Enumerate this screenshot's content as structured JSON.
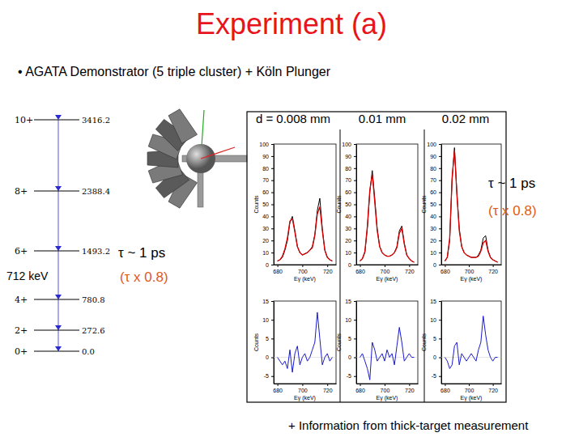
{
  "title": "Experiment (a)",
  "bullet": "• AGATA Demonstrator (5 triple cluster) + Köln Plunger",
  "level_scheme": {
    "levels": [
      {
        "spin": "10+",
        "energy": "3416.2"
      },
      {
        "spin": "8+",
        "energy": "2388.4"
      },
      {
        "spin": "6+",
        "energy": "1493.2"
      },
      {
        "spin": "4+",
        "energy": "780.8"
      },
      {
        "spin": "2+",
        "energy": "272.6"
      },
      {
        "spin": "0+",
        "energy": "0.0"
      }
    ],
    "transition_label": "712 keV"
  },
  "lifetime_labels": {
    "left": [
      "τ ~ 1 ps",
      "(τ x 0.8)"
    ],
    "right": [
      "τ ~ 1 ps",
      "(τ x 0.8)"
    ]
  },
  "footer": "+ Information from thick-target measurement",
  "chart_data": [
    {
      "type": "line",
      "title": "d = 0.008 mm",
      "x_label": "Eγ (keV)",
      "y_label": "Counts",
      "x": [
        680,
        682,
        684,
        686,
        688,
        690,
        692,
        694,
        696,
        698,
        700,
        702,
        704,
        706,
        708,
        710,
        712,
        714,
        716,
        718,
        720,
        722,
        724
      ],
      "series": [
        {
          "color": "#000000",
          "values": [
            3,
            4,
            6,
            12,
            20,
            35,
            40,
            28,
            15,
            10,
            8,
            9,
            10,
            12,
            15,
            25,
            45,
            55,
            30,
            12,
            6,
            4,
            3
          ]
        },
        {
          "color": "#dd0000",
          "values": [
            3,
            4,
            7,
            13,
            22,
            36,
            38,
            27,
            15,
            10,
            8,
            9,
            10,
            12,
            14,
            24,
            42,
            48,
            28,
            12,
            6,
            4,
            3
          ]
        }
      ],
      "xlim": [
        677,
        727
      ],
      "xticks": [
        680,
        700,
        720
      ],
      "ylim": [
        0,
        100
      ],
      "yticks": [
        0,
        10,
        20,
        30,
        40,
        50,
        60,
        70,
        80,
        90,
        100
      ]
    },
    {
      "type": "line",
      "title": "0.01 mm",
      "x_label": "Eγ (keV)",
      "y_label": "Counts",
      "x": [
        680,
        682,
        684,
        686,
        688,
        690,
        692,
        694,
        696,
        698,
        700,
        702,
        704,
        706,
        708,
        710,
        712,
        714,
        716,
        718,
        720,
        722,
        724
      ],
      "series": [
        {
          "color": "#000000",
          "values": [
            3,
            5,
            10,
            30,
            60,
            78,
            55,
            30,
            15,
            10,
            8,
            7,
            7,
            8,
            10,
            15,
            28,
            32,
            18,
            8,
            5,
            3,
            2
          ]
        },
        {
          "color": "#dd0000",
          "values": [
            3,
            5,
            11,
            32,
            62,
            75,
            52,
            28,
            15,
            10,
            8,
            7,
            7,
            8,
            10,
            14,
            26,
            30,
            17,
            8,
            5,
            3,
            2
          ]
        }
      ],
      "xlim": [
        677,
        727
      ],
      "xticks": [
        680,
        700,
        720
      ],
      "ylim": [
        0,
        100
      ],
      "yticks": [
        0,
        10,
        20,
        30,
        40,
        50,
        60,
        70,
        80,
        90,
        100
      ]
    },
    {
      "type": "line",
      "title": "0.02 mm",
      "x_label": "Eγ (keV)",
      "y_label": "Counts",
      "x": [
        680,
        682,
        684,
        686,
        688,
        690,
        692,
        694,
        696,
        698,
        700,
        702,
        704,
        706,
        708,
        710,
        712,
        714,
        716,
        718,
        720,
        722,
        724
      ],
      "series": [
        {
          "color": "#000000",
          "values": [
            3,
            6,
            20,
            70,
            97,
            60,
            30,
            15,
            10,
            8,
            7,
            6,
            6,
            6,
            8,
            12,
            22,
            24,
            12,
            6,
            4,
            3,
            2
          ]
        },
        {
          "color": "#dd0000",
          "values": [
            3,
            6,
            22,
            72,
            95,
            58,
            28,
            15,
            10,
            8,
            7,
            6,
            6,
            6,
            7,
            11,
            18,
            20,
            11,
            6,
            4,
            3,
            2
          ]
        }
      ],
      "xlim": [
        677,
        727
      ],
      "xticks": [
        680,
        700,
        720
      ],
      "ylim": [
        0,
        100
      ],
      "yticks": [
        0,
        10,
        20,
        30,
        40,
        50,
        60,
        70,
        80,
        90,
        100
      ]
    },
    {
      "type": "line",
      "x_label": "Eγ (keV)",
      "y_label": "Counts",
      "x": [
        680,
        682,
        684,
        686,
        688,
        690,
        692,
        694,
        696,
        698,
        700,
        702,
        704,
        706,
        708,
        710,
        712,
        714,
        716,
        718,
        720,
        722,
        724
      ],
      "series": [
        {
          "color": "#1a1acc",
          "values": [
            0,
            -1,
            -2,
            -1,
            -3,
            2,
            -4,
            1,
            3,
            -2,
            0,
            1,
            -1,
            0,
            2,
            4,
            12,
            5,
            -2,
            0,
            1,
            -1,
            0
          ]
        }
      ],
      "xlim": [
        677,
        727
      ],
      "xticks": [
        680,
        700,
        720
      ],
      "ylim": [
        -7,
        15
      ],
      "yticks": [
        -5,
        0,
        5,
        10,
        15
      ]
    },
    {
      "type": "line",
      "x_label": "Eγ (keV)",
      "y_label": "Counts",
      "x": [
        680,
        682,
        684,
        686,
        688,
        690,
        692,
        694,
        696,
        698,
        700,
        702,
        704,
        706,
        708,
        710,
        712,
        714,
        716,
        718,
        720,
        722,
        724
      ],
      "series": [
        {
          "color": "#1a1acc",
          "values": [
            0,
            1,
            -1,
            -3,
            -6,
            4,
            2,
            -1,
            0,
            1,
            -1,
            2,
            0,
            1,
            -2,
            3,
            8,
            4,
            -1,
            0,
            1,
            0,
            0
          ]
        }
      ],
      "xlim": [
        677,
        727
      ],
      "xticks": [
        680,
        700,
        720
      ],
      "ylim": [
        -7,
        15
      ],
      "yticks": [
        -5,
        0,
        5,
        10,
        15
      ]
    },
    {
      "type": "line",
      "x_label": "Eγ (keV)",
      "y_label": "Counts",
      "x": [
        680,
        682,
        684,
        686,
        688,
        690,
        692,
        694,
        696,
        698,
        700,
        702,
        704,
        706,
        708,
        710,
        712,
        714,
        716,
        718,
        720,
        722,
        724
      ],
      "series": [
        {
          "color": "#1a1acc",
          "values": [
            0,
            -1,
            -3,
            -2,
            3,
            4,
            -2,
            1,
            0,
            -1,
            0,
            1,
            0,
            -1,
            2,
            4,
            11,
            6,
            2,
            0,
            -1,
            0,
            0
          ]
        }
      ],
      "xlim": [
        677,
        727
      ],
      "xticks": [
        680,
        700,
        720
      ],
      "ylim": [
        -7,
        15
      ],
      "yticks": [
        -5,
        0,
        5,
        10,
        15
      ]
    }
  ]
}
